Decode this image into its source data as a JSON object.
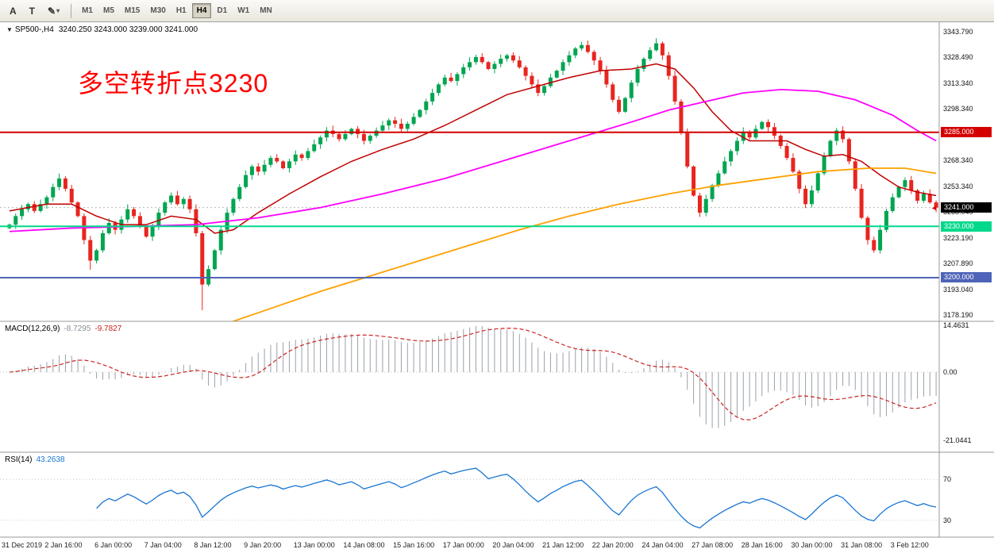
{
  "toolbar": {
    "tool_a": "A",
    "tool_t": "T",
    "icons": {
      "pencil": "✎",
      "caret": "▾"
    },
    "timeframes": [
      "M1",
      "M5",
      "M15",
      "M30",
      "H1",
      "H4",
      "D1",
      "W1",
      "MN"
    ],
    "active_timeframe": "H4"
  },
  "symbol_bar": {
    "collapse_icon": "▼",
    "symbol": "SP500-,H4",
    "ohlc": "3240.250 3243.000 3239.000 3241.000"
  },
  "main_chart": {
    "annotation": {
      "text": "多空转折点3230",
      "color": "#FF0000"
    },
    "price_axis": [
      "3343.790",
      "3328.490",
      "3313.340",
      "3298.340",
      "3283.190",
      "3268.340",
      "3253.340",
      "3238.040",
      "3223.190",
      "3207.890",
      "3193.040",
      "3178.190"
    ],
    "current_price_label": "3241.000"
  },
  "macd": {
    "name": "MACD(12,26,9)",
    "value_main": "-8.7295",
    "value_signal": "-9.7827",
    "axis": [
      "14.4631",
      "0.00",
      "-21.0441"
    ]
  },
  "rsi": {
    "name": "RSI(14)",
    "value": "43.2638",
    "levels": [
      "70",
      "30"
    ]
  },
  "chart_data": {
    "type": "candlestick",
    "title": "SP500- H4 candlestick chart with MACD(12,26,9) and RSI(14)",
    "symbol": "SP500-",
    "timeframe": "H4",
    "ylim": [
      3178.19,
      3343.79
    ],
    "x_labels": [
      "31 Dec 2019",
      "2 Jan 16:00",
      "6 Jan 00:00",
      "7 Jan 04:00",
      "8 Jan 12:00",
      "9 Jan 20:00",
      "13 Jan 00:00",
      "14 Jan 08:00",
      "15 Jan 16:00",
      "17 Jan 00:00",
      "20 Jan 04:00",
      "21 Jan 12:00",
      "22 Jan 20:00",
      "24 Jan 04:00",
      "27 Jan 08:00",
      "28 Jan 16:00",
      "30 Jan 00:00",
      "31 Jan 08:00",
      "3 Feb 12:00"
    ],
    "first_label_bar": 1,
    "bars_per_label": 8,
    "closes": [
      3231,
      3236,
      3240,
      3243,
      3239,
      3243,
      3247,
      3253,
      3258,
      3252,
      3244,
      3236,
      3222,
      3210,
      3216,
      3226,
      3232,
      3228,
      3234,
      3240,
      3236,
      3230,
      3224,
      3230,
      3238,
      3244,
      3248,
      3243,
      3246,
      3240,
      3226,
      3196,
      3205,
      3216,
      3228,
      3238,
      3246,
      3253,
      3260,
      3265,
      3262,
      3266,
      3270,
      3268,
      3264,
      3268,
      3272,
      3270,
      3274,
      3278,
      3282,
      3286,
      3284,
      3281,
      3284,
      3287,
      3284,
      3280,
      3283,
      3286,
      3289,
      3292,
      3290,
      3287,
      3290,
      3294,
      3298,
      3303,
      3308,
      3313,
      3317,
      3315,
      3319,
      3323,
      3326,
      3329,
      3326,
      3322,
      3325,
      3328,
      3330,
      3327,
      3323,
      3318,
      3313,
      3308,
      3312,
      3317,
      3321,
      3326,
      3330,
      3334,
      3336,
      3332,
      3327,
      3321,
      3313,
      3304,
      3297,
      3305,
      3314,
      3322,
      3328,
      3333,
      3337,
      3330,
      3318,
      3303,
      3285,
      3265,
      3248,
      3238,
      3246,
      3254,
      3261,
      3268,
      3274,
      3280,
      3285,
      3282,
      3287,
      3291,
      3288,
      3283,
      3277,
      3270,
      3262,
      3252,
      3243,
      3251,
      3261,
      3271,
      3280,
      3286,
      3281,
      3268,
      3252,
      3235,
      3222,
      3216,
      3228,
      3239,
      3247,
      3253,
      3257,
      3251,
      3245,
      3249,
      3244,
      3241
    ],
    "wick_low_overrides": {
      "13": 3204.6,
      "31": 3181.0,
      "139": 3214.5
    },
    "wick_high_overrides": {
      "104": 3340.0
    },
    "colors": {
      "bull": "#00a550",
      "bear": "#e8251f"
    },
    "overlays": {
      "ma_red": {
        "color": "#c00000",
        "width": 1.5,
        "points": [
          [
            0,
            3239
          ],
          [
            6,
            3243
          ],
          [
            10,
            3243
          ],
          [
            14,
            3236
          ],
          [
            18,
            3231
          ],
          [
            22,
            3231
          ],
          [
            26,
            3236
          ],
          [
            30,
            3234
          ],
          [
            33,
            3226
          ],
          [
            36,
            3228
          ],
          [
            40,
            3238
          ],
          [
            45,
            3249
          ],
          [
            50,
            3259
          ],
          [
            55,
            3268
          ],
          [
            60,
            3275
          ],
          [
            65,
            3281
          ],
          [
            70,
            3289
          ],
          [
            75,
            3298
          ],
          [
            80,
            3307
          ],
          [
            85,
            3312
          ],
          [
            90,
            3317
          ],
          [
            95,
            3321
          ],
          [
            100,
            3322
          ],
          [
            104,
            3325
          ],
          [
            107,
            3322
          ],
          [
            110,
            3311
          ],
          [
            113,
            3297
          ],
          [
            116,
            3286
          ],
          [
            119,
            3280
          ],
          [
            122,
            3280
          ],
          [
            125,
            3280
          ],
          [
            128,
            3275
          ],
          [
            131,
            3271
          ],
          [
            134,
            3272
          ],
          [
            137,
            3268
          ],
          [
            140,
            3260
          ],
          [
            143,
            3253
          ],
          [
            146,
            3250
          ],
          [
            149,
            3248
          ]
        ]
      },
      "ma_magenta": {
        "color": "#ff00ff",
        "width": 1.8,
        "points": [
          [
            0,
            3227
          ],
          [
            10,
            3229
          ],
          [
            20,
            3230
          ],
          [
            30,
            3231
          ],
          [
            40,
            3235
          ],
          [
            50,
            3241
          ],
          [
            60,
            3249
          ],
          [
            70,
            3258
          ],
          [
            80,
            3269
          ],
          [
            90,
            3280
          ],
          [
            100,
            3291
          ],
          [
            106,
            3298
          ],
          [
            112,
            3303
          ],
          [
            118,
            3308
          ],
          [
            124,
            3310
          ],
          [
            130,
            3309
          ],
          [
            136,
            3304
          ],
          [
            142,
            3295
          ],
          [
            146,
            3286
          ],
          [
            149,
            3280
          ]
        ]
      },
      "ma_orange": {
        "color": "#ffa000",
        "width": 1.8,
        "points": [
          [
            18,
            3150
          ],
          [
            26,
            3161
          ],
          [
            34,
            3172
          ],
          [
            42,
            3182
          ],
          [
            50,
            3192
          ],
          [
            58,
            3201
          ],
          [
            66,
            3210
          ],
          [
            74,
            3219
          ],
          [
            82,
            3228
          ],
          [
            90,
            3236
          ],
          [
            98,
            3243
          ],
          [
            106,
            3249
          ],
          [
            114,
            3254
          ],
          [
            122,
            3258
          ],
          [
            130,
            3262
          ],
          [
            138,
            3264
          ],
          [
            144,
            3264
          ],
          [
            149,
            3261
          ]
        ]
      }
    },
    "hlines": [
      {
        "price": 3285,
        "color": "#d40000",
        "label": "3285.000"
      },
      {
        "price": 3230,
        "color": "#00d98b",
        "label": "3230.000"
      },
      {
        "price": 3200,
        "color": "#4f63b8",
        "label": "3200.000"
      }
    ],
    "current_price": 3241.0,
    "indicators": {
      "macd": {
        "params": [
          12,
          26,
          9
        ],
        "range": [
          -21.0441,
          14.4631
        ],
        "last_main": -8.7295,
        "last_signal": -9.7827
      },
      "rsi": {
        "params": [
          14
        ],
        "levels": [
          30,
          70
        ],
        "last_value": 43.2638
      }
    }
  }
}
